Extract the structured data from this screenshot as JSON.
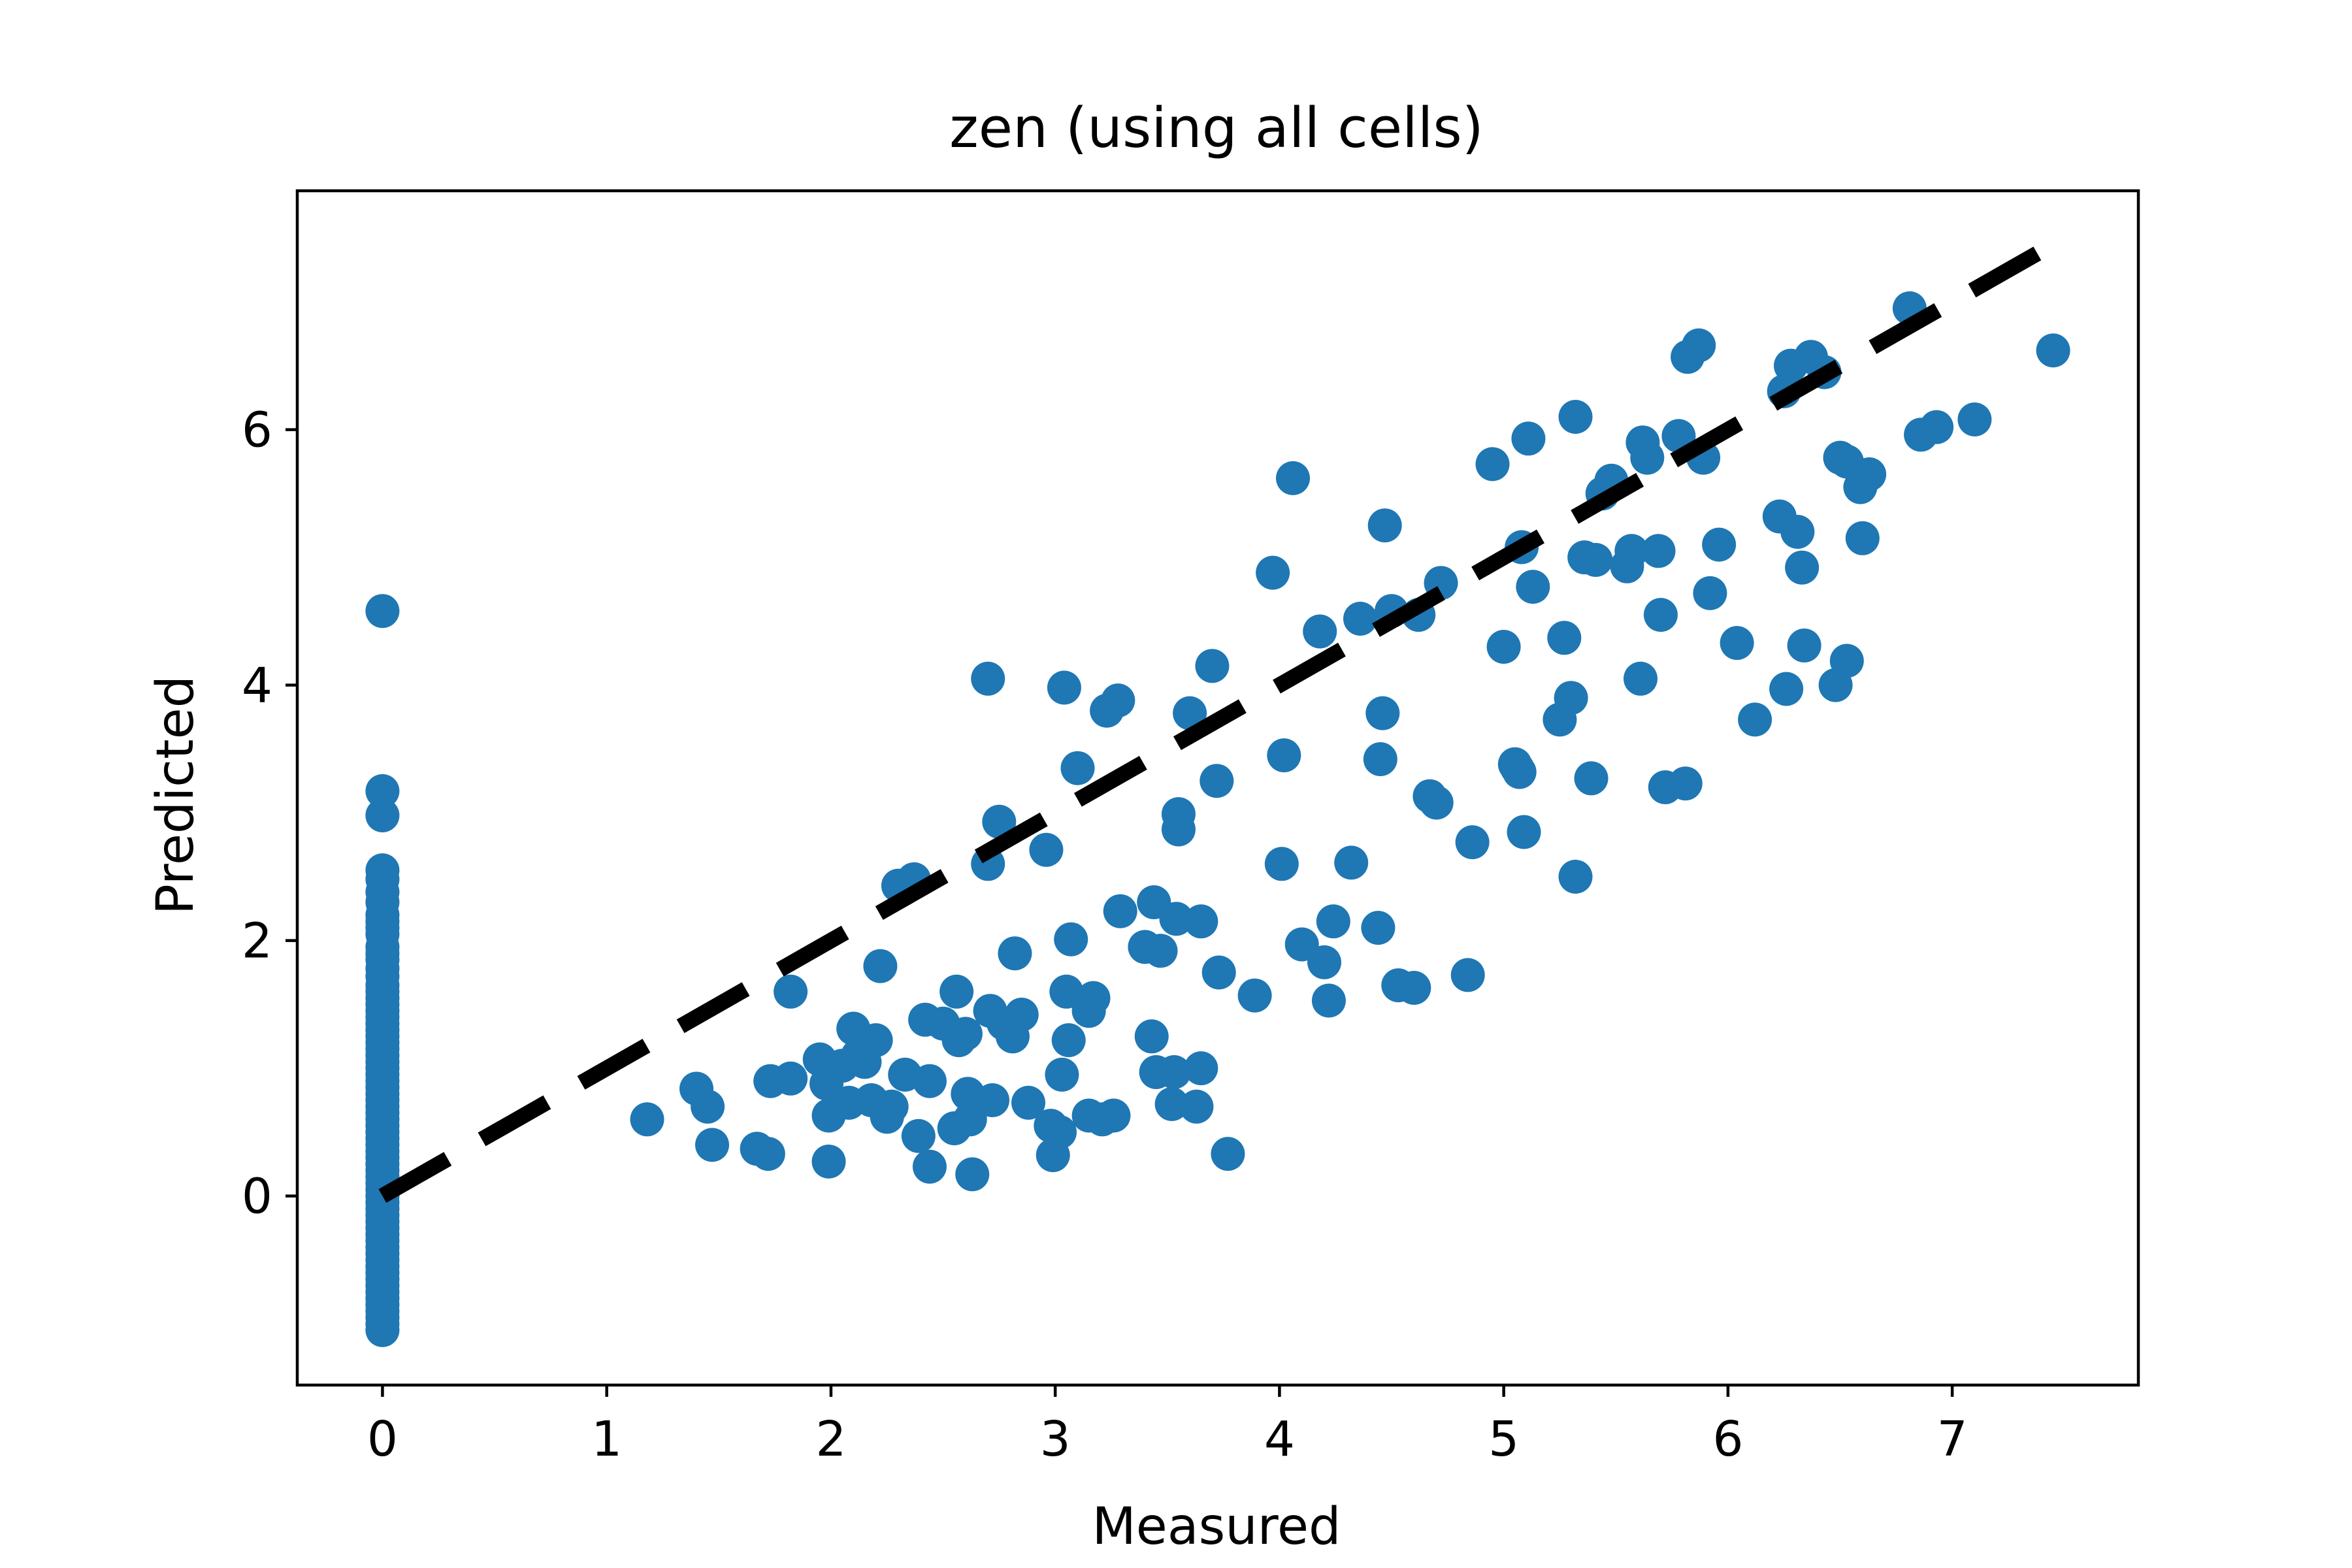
{
  "chart_data": {
    "type": "scatter",
    "title": "zen (using all cells)",
    "xlabel": "Measured",
    "ylabel": "Predicted",
    "xlim": [
      -0.38,
      7.83
    ],
    "ylim": [
      -1.48,
      7.87
    ],
    "xticks": [
      0,
      1,
      2,
      3,
      4,
      5,
      6,
      7
    ],
    "yticks": [
      0,
      2,
      4,
      6
    ],
    "grid": false,
    "legend": "none",
    "colors": {
      "points": "#1f77b4",
      "line": "#000000",
      "axes": "#000000",
      "background": "#ffffff"
    },
    "reference_line": {
      "style": "dashed",
      "x": [
        0,
        7.45
      ],
      "y": [
        0,
        7.45
      ]
    },
    "series": [
      {
        "points": [
          [
            0,
            4.58
          ],
          [
            0,
            3.17
          ],
          [
            0,
            2.98
          ],
          [
            0,
            2.55
          ],
          [
            0,
            2.48
          ],
          [
            0,
            2.38
          ],
          [
            0,
            2.3
          ],
          [
            0,
            2.2
          ],
          [
            0,
            2.15
          ],
          [
            0,
            2.1
          ],
          [
            0,
            2.05
          ],
          [
            0,
            1.95
          ],
          [
            0,
            1.9
          ],
          [
            0,
            1.85
          ],
          [
            0,
            1.78
          ],
          [
            0,
            1.72
          ],
          [
            0,
            1.65
          ],
          [
            0,
            1.6
          ],
          [
            0,
            1.55
          ],
          [
            0,
            1.5
          ],
          [
            0,
            1.45
          ],
          [
            0,
            1.4
          ],
          [
            0,
            1.35
          ],
          [
            0,
            1.3
          ],
          [
            0,
            1.25
          ],
          [
            0,
            1.2
          ],
          [
            0,
            1.15
          ],
          [
            0,
            1.1
          ],
          [
            0,
            1.05
          ],
          [
            0,
            1.0
          ],
          [
            0,
            0.95
          ],
          [
            0,
            0.9
          ],
          [
            0,
            0.85
          ],
          [
            0,
            0.8
          ],
          [
            0,
            0.75
          ],
          [
            0,
            0.7
          ],
          [
            0,
            0.65
          ],
          [
            0,
            0.6
          ],
          [
            0,
            0.55
          ],
          [
            0,
            0.5
          ],
          [
            0,
            0.45
          ],
          [
            0,
            0.4
          ],
          [
            0,
            0.35
          ],
          [
            0,
            0.3
          ],
          [
            0,
            0.25
          ],
          [
            0,
            0.2
          ],
          [
            0,
            0.15
          ],
          [
            0,
            0.1
          ],
          [
            0,
            0.05
          ],
          [
            0,
            0.0
          ],
          [
            0,
            -0.05
          ],
          [
            0,
            -0.1
          ],
          [
            0,
            -0.15
          ],
          [
            0,
            -0.2
          ],
          [
            0,
            -0.25
          ],
          [
            0,
            -0.3
          ],
          [
            0,
            -0.35
          ],
          [
            0,
            -0.4
          ],
          [
            0,
            -0.45
          ],
          [
            0,
            -0.5
          ],
          [
            0,
            -0.55
          ],
          [
            0,
            -0.6
          ],
          [
            0,
            -0.65
          ],
          [
            0,
            -0.7
          ],
          [
            0,
            -0.75
          ],
          [
            0,
            -0.8
          ],
          [
            0,
            -0.85
          ],
          [
            0,
            -0.9
          ],
          [
            0,
            -0.95
          ],
          [
            0,
            -1.0
          ],
          [
            0,
            -1.05
          ],
          [
            1.18,
            0.6
          ],
          [
            1.4,
            0.84
          ],
          [
            1.45,
            0.7
          ],
          [
            1.47,
            0.4
          ],
          [
            1.67,
            0.37
          ],
          [
            1.72,
            0.33
          ],
          [
            1.73,
            0.9
          ],
          [
            1.82,
            0.92
          ],
          [
            1.82,
            1.6
          ],
          [
            1.95,
            1.07
          ],
          [
            1.98,
            0.88
          ],
          [
            1.99,
            0.63
          ],
          [
            1.99,
            0.27
          ],
          [
            2.05,
            1.02
          ],
          [
            2.08,
            0.73
          ],
          [
            2.1,
            1.31
          ],
          [
            2.12,
            1.1
          ],
          [
            2.15,
            1.05
          ],
          [
            2.18,
            0.75
          ],
          [
            2.2,
            1.22
          ],
          [
            2.22,
            1.8
          ],
          [
            2.25,
            0.62
          ],
          [
            2.27,
            0.7
          ],
          [
            2.3,
            2.43
          ],
          [
            2.33,
            0.95
          ],
          [
            2.37,
            2.48
          ],
          [
            2.39,
            0.47
          ],
          [
            2.42,
            1.38
          ],
          [
            2.44,
            0.9
          ],
          [
            2.44,
            0.23
          ],
          [
            2.5,
            1.35
          ],
          [
            2.55,
            0.53
          ],
          [
            2.56,
            1.6
          ],
          [
            2.57,
            1.22
          ],
          [
            2.6,
            1.27
          ],
          [
            2.61,
            0.8
          ],
          [
            2.62,
            0.6
          ],
          [
            2.63,
            0.17
          ],
          [
            2.7,
            2.6
          ],
          [
            2.7,
            4.05
          ],
          [
            2.71,
            1.45
          ],
          [
            2.72,
            0.75
          ],
          [
            2.75,
            2.93
          ],
          [
            2.77,
            1.35
          ],
          [
            2.81,
            1.25
          ],
          [
            2.82,
            1.9
          ],
          [
            2.85,
            1.42
          ],
          [
            2.88,
            0.73
          ],
          [
            2.96,
            2.71
          ],
          [
            2.98,
            0.55
          ],
          [
            2.99,
            0.32
          ],
          [
            3.02,
            0.5
          ],
          [
            3.03,
            0.95
          ],
          [
            3.04,
            3.98
          ],
          [
            3.05,
            1.6
          ],
          [
            3.06,
            1.22
          ],
          [
            3.07,
            2.01
          ],
          [
            3.1,
            3.35
          ],
          [
            3.15,
            0.63
          ],
          [
            3.15,
            1.45
          ],
          [
            3.17,
            1.55
          ],
          [
            3.21,
            0.6
          ],
          [
            3.23,
            3.8
          ],
          [
            3.26,
            0.63
          ],
          [
            3.28,
            3.88
          ],
          [
            3.29,
            2.23
          ],
          [
            3.4,
            1.95
          ],
          [
            3.43,
            1.25
          ],
          [
            3.44,
            2.3
          ],
          [
            3.45,
            0.97
          ],
          [
            3.47,
            1.92
          ],
          [
            3.52,
            0.72
          ],
          [
            3.53,
            0.97
          ],
          [
            3.54,
            2.17
          ],
          [
            3.55,
            2.99
          ],
          [
            3.55,
            2.87
          ],
          [
            3.6,
            3.78
          ],
          [
            3.63,
            0.7
          ],
          [
            3.65,
            1.0
          ],
          [
            3.65,
            2.15
          ],
          [
            3.7,
            4.15
          ],
          [
            3.72,
            3.25
          ],
          [
            3.73,
            1.75
          ],
          [
            3.77,
            0.33
          ],
          [
            3.89,
            1.57
          ],
          [
            3.97,
            4.88
          ],
          [
            4.01,
            2.6
          ],
          [
            4.02,
            3.45
          ],
          [
            4.06,
            5.62
          ],
          [
            4.1,
            1.97
          ],
          [
            4.18,
            4.42
          ],
          [
            4.2,
            1.83
          ],
          [
            4.22,
            1.53
          ],
          [
            4.24,
            2.15
          ],
          [
            4.32,
            2.61
          ],
          [
            4.36,
            4.52
          ],
          [
            4.44,
            2.1
          ],
          [
            4.45,
            3.42
          ],
          [
            4.46,
            3.78
          ],
          [
            4.47,
            5.25
          ],
          [
            4.5,
            4.58
          ],
          [
            4.53,
            1.65
          ],
          [
            4.6,
            1.63
          ],
          [
            4.62,
            4.55
          ],
          [
            4.67,
            3.13
          ],
          [
            4.7,
            3.08
          ],
          [
            4.72,
            4.8
          ],
          [
            4.84,
            1.73
          ],
          [
            4.86,
            2.77
          ],
          [
            4.95,
            5.73
          ],
          [
            5.0,
            4.3
          ],
          [
            5.05,
            3.38
          ],
          [
            5.06,
            3.35
          ],
          [
            5.07,
            3.32
          ],
          [
            5.08,
            5.08
          ],
          [
            5.09,
            2.85
          ],
          [
            5.11,
            5.93
          ],
          [
            5.13,
            4.77
          ],
          [
            5.25,
            3.73
          ],
          [
            5.27,
            4.37
          ],
          [
            5.3,
            3.9
          ],
          [
            5.32,
            2.5
          ],
          [
            5.32,
            6.1
          ],
          [
            5.36,
            5.0
          ],
          [
            5.39,
            3.27
          ],
          [
            5.41,
            4.98
          ],
          [
            5.44,
            5.5
          ],
          [
            5.48,
            5.6
          ],
          [
            5.55,
            4.93
          ],
          [
            5.57,
            5.05
          ],
          [
            5.61,
            4.05
          ],
          [
            5.62,
            5.9
          ],
          [
            5.64,
            5.78
          ],
          [
            5.69,
            5.05
          ],
          [
            5.7,
            4.55
          ],
          [
            5.72,
            3.2
          ],
          [
            5.78,
            5.95
          ],
          [
            5.81,
            3.23
          ],
          [
            5.82,
            6.57
          ],
          [
            5.87,
            6.66
          ],
          [
            5.89,
            5.78
          ],
          [
            5.92,
            4.72
          ],
          [
            5.96,
            5.1
          ],
          [
            6.04,
            4.33
          ],
          [
            6.12,
            3.73
          ],
          [
            6.23,
            5.32
          ],
          [
            6.25,
            6.3
          ],
          [
            6.26,
            3.97
          ],
          [
            6.28,
            6.5
          ],
          [
            6.31,
            5.2
          ],
          [
            6.33,
            4.92
          ],
          [
            6.34,
            4.31
          ],
          [
            6.37,
            6.57
          ],
          [
            6.43,
            6.45
          ],
          [
            6.48,
            4.0
          ],
          [
            6.5,
            5.78
          ],
          [
            6.53,
            5.75
          ],
          [
            6.53,
            4.19
          ],
          [
            6.59,
            5.55
          ],
          [
            6.6,
            5.15
          ],
          [
            6.63,
            5.65
          ],
          [
            6.81,
            6.95
          ],
          [
            6.86,
            5.96
          ],
          [
            6.93,
            6.02
          ],
          [
            7.1,
            6.08
          ],
          [
            7.45,
            6.62
          ]
        ]
      }
    ]
  }
}
